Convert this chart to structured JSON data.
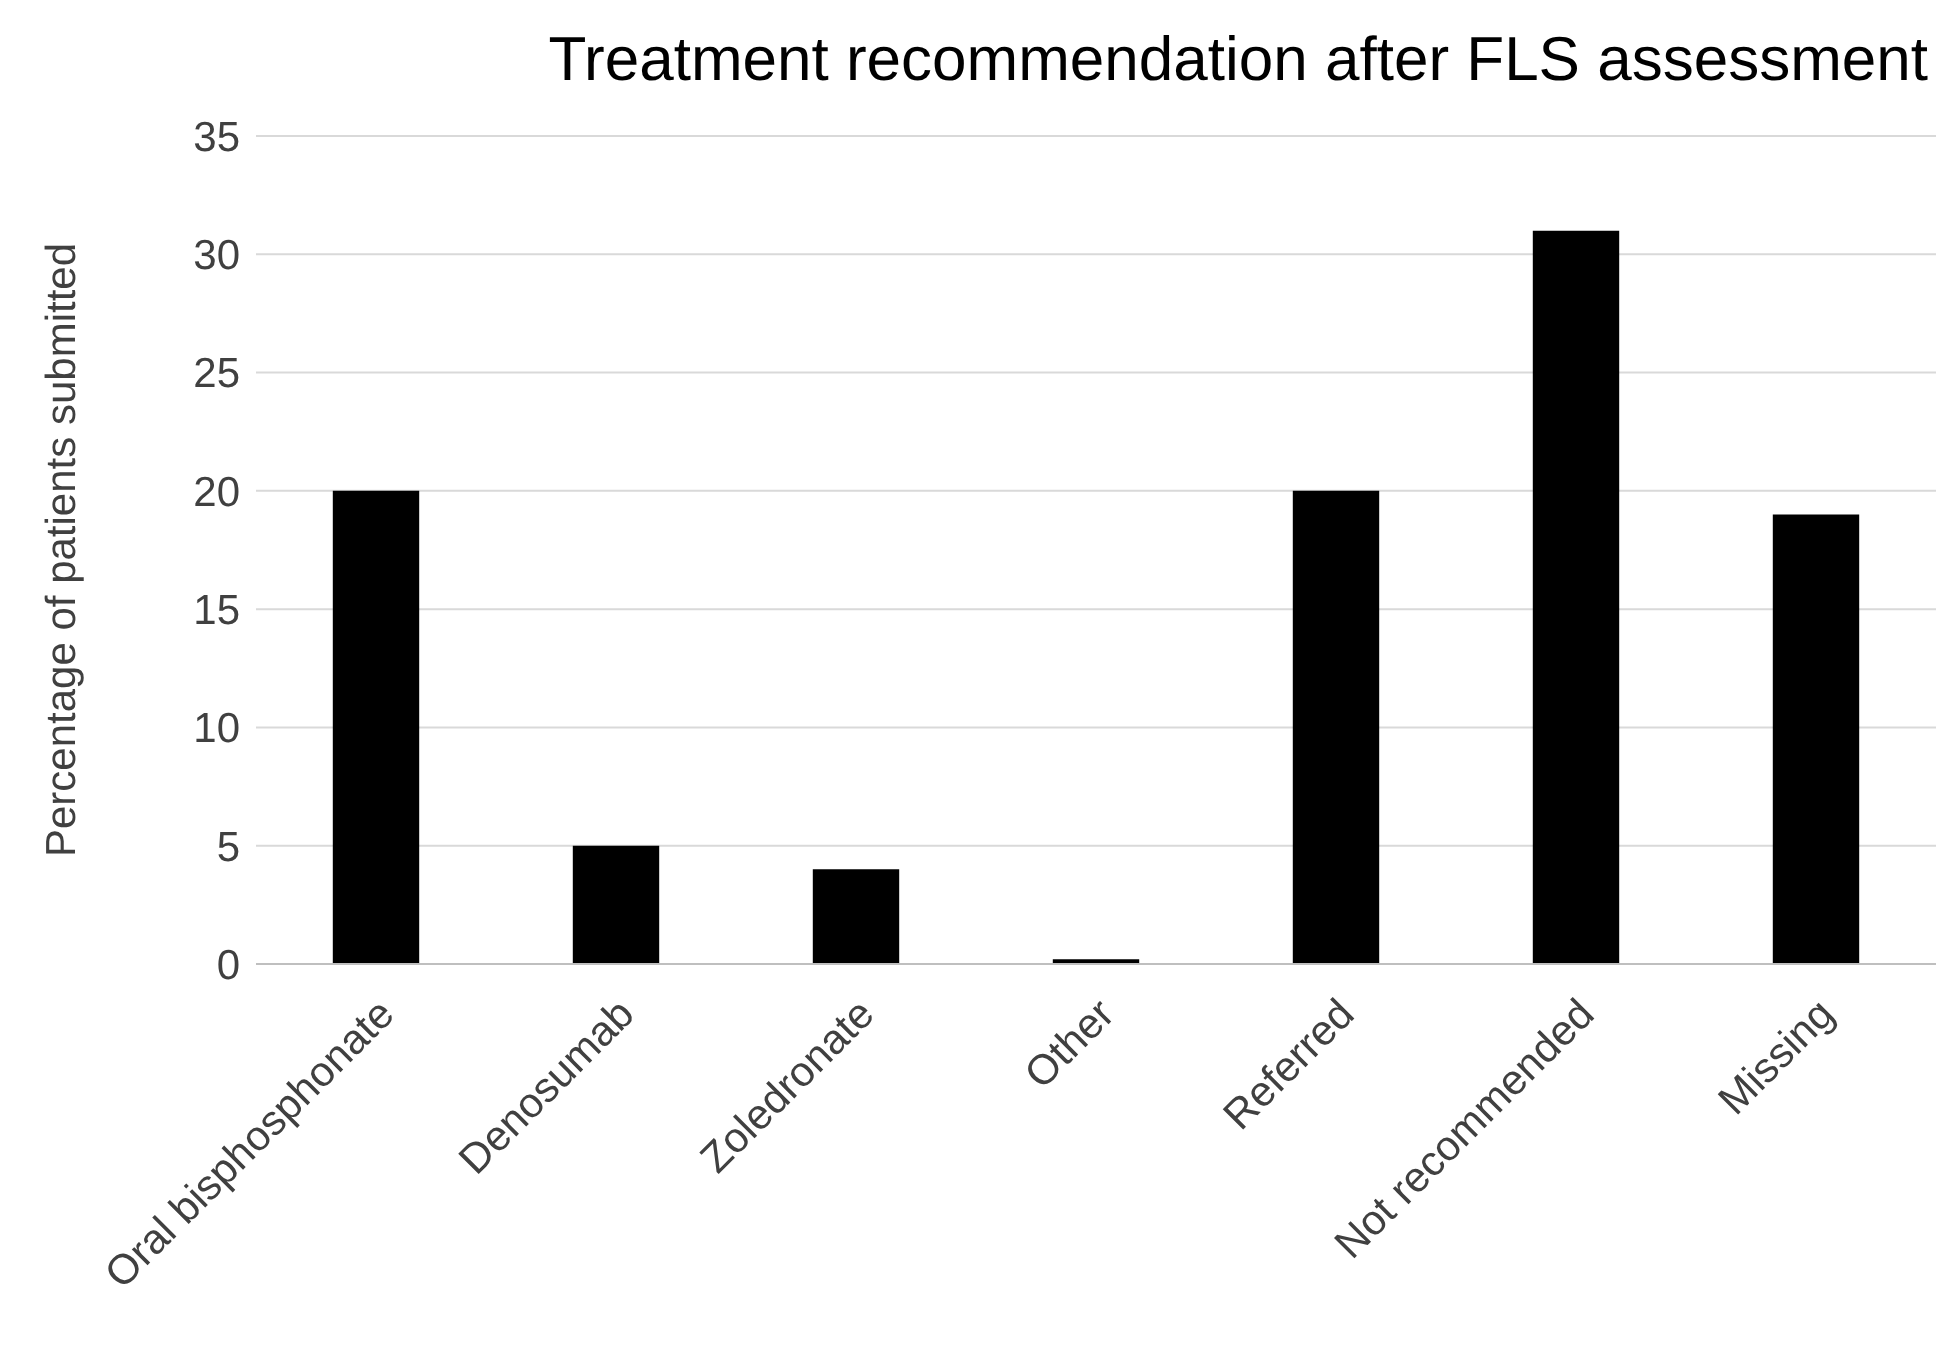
{
  "chart_data": {
    "type": "bar",
    "title": "Treatment recommendation after FLS assessment",
    "ylabel": "Percentage of patients submitted",
    "categories": [
      "Oral bisphosphonate",
      "Denosumab",
      "Zoledronate",
      "Other",
      "Referred",
      "Not recommended",
      "Missing"
    ],
    "values": [
      20,
      5,
      4,
      0.2,
      20,
      31,
      19
    ],
    "color": "#000000",
    "ylim": [
      0,
      35
    ],
    "yticks": [
      0,
      5,
      10,
      15,
      20,
      25,
      30,
      35
    ],
    "grid": "y"
  }
}
